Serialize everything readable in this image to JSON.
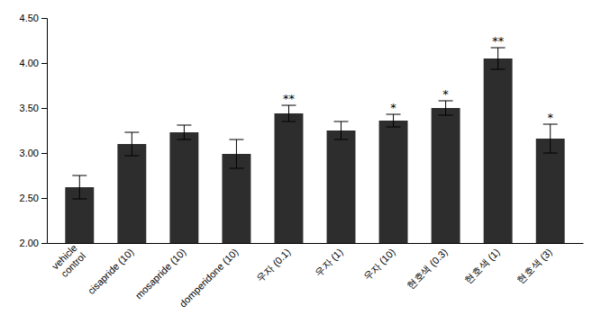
{
  "chart_data": {
    "type": "bar",
    "categories": [
      "vehicle\ncontrol",
      "cisapride (10)",
      "mosapride (10)",
      "domperidone (10)",
      "우자 (0.1)",
      "우자 (1)",
      "우자 (10)",
      "현호색 (0.3)",
      "현호색 (1)",
      "현호색 (3)"
    ],
    "values": [
      2.62,
      3.1,
      3.23,
      2.99,
      3.44,
      3.25,
      3.36,
      3.5,
      4.05,
      3.16
    ],
    "errors": [
      0.13,
      0.13,
      0.08,
      0.16,
      0.09,
      0.1,
      0.07,
      0.08,
      0.12,
      0.16
    ],
    "significance": [
      null,
      null,
      null,
      null,
      "**",
      null,
      "*",
      "*",
      "**",
      "*"
    ],
    "color": "#2d2d2d",
    "ylim": [
      2.0,
      4.5
    ],
    "yticks": [
      {
        "value": 2.0,
        "label": "2.00"
      },
      {
        "value": 2.5,
        "label": "2.50"
      },
      {
        "value": 3.0,
        "label": "3.00"
      },
      {
        "value": 3.5,
        "label": "3.50"
      },
      {
        "value": 4.0,
        "label": "4.00"
      },
      {
        "value": 4.5,
        "label": "4.50"
      }
    ],
    "grid": false
  }
}
